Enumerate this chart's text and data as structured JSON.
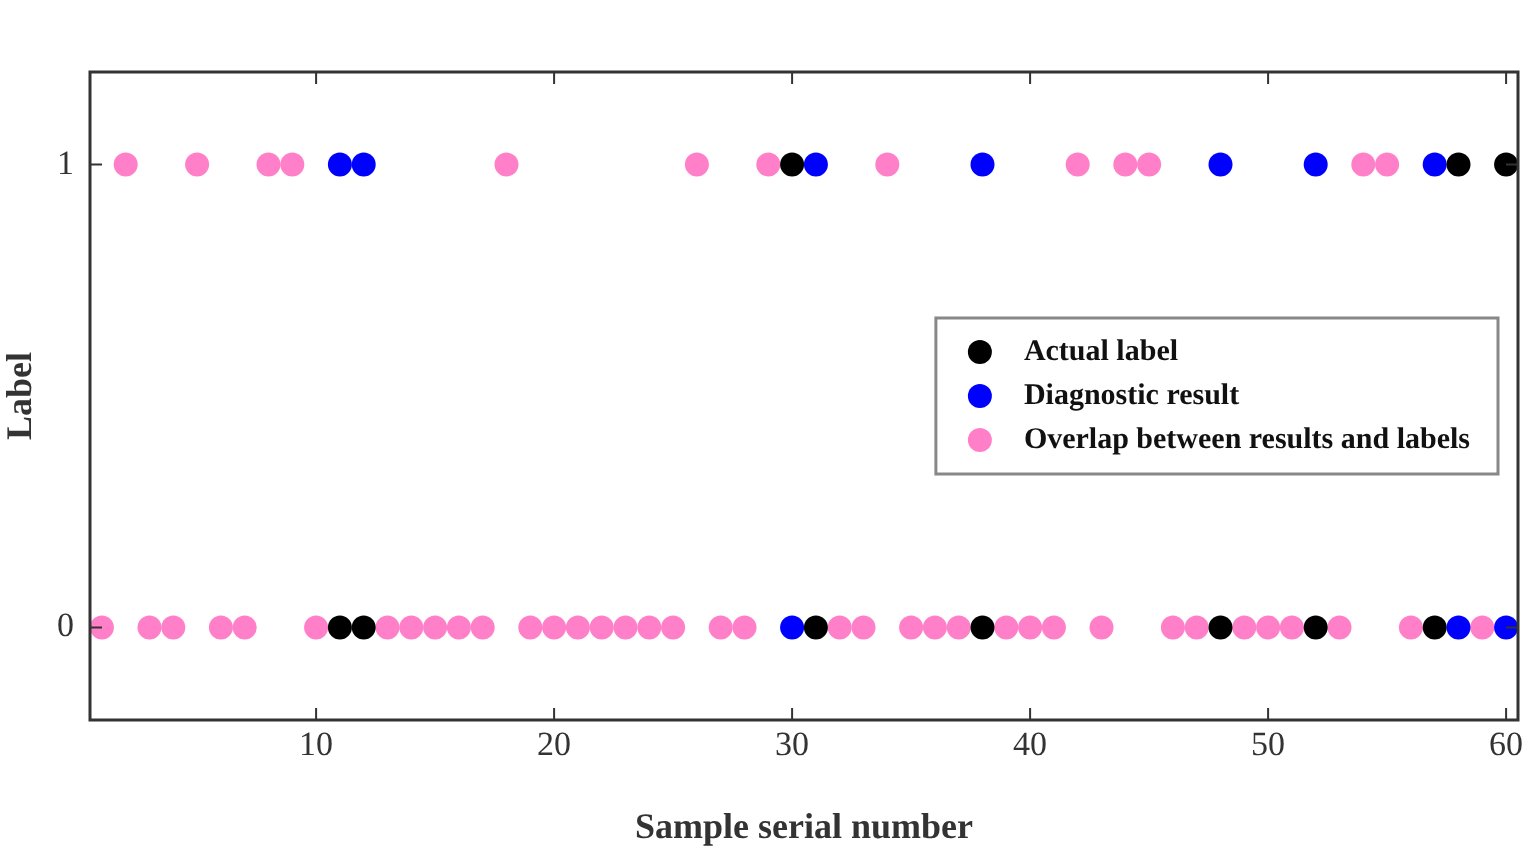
{
  "chart_data": {
    "type": "scatter",
    "xlabel": "Sample serial number",
    "ylabel": "Label",
    "xlim": [
      0.5,
      60.5
    ],
    "xticks": [
      10,
      20,
      30,
      40,
      50,
      60
    ],
    "ylim": [
      -0.2,
      1.2
    ],
    "yticks": [
      0,
      1
    ],
    "grid": false,
    "legend": "right",
    "marker": "circle",
    "series": [
      {
        "name": "Actual label",
        "color": "#000000",
        "x": [
          30,
          58,
          60,
          11,
          12,
          31,
          38,
          48,
          52,
          57
        ],
        "values": [
          1,
          1,
          1,
          0,
          0,
          0,
          0,
          0,
          0,
          0
        ]
      },
      {
        "name": "Diagnostic result",
        "color": "#0000ff",
        "x": [
          11,
          12,
          31,
          38,
          48,
          52,
          57,
          30,
          58,
          60
        ],
        "values": [
          1,
          1,
          1,
          1,
          1,
          1,
          1,
          0,
          0,
          0
        ]
      },
      {
        "name": "Overlap between results and labels",
        "color": "#ff80c8",
        "x": [
          2,
          5,
          8,
          9,
          18,
          26,
          29,
          34,
          42,
          44,
          45,
          54,
          55,
          1,
          3,
          4,
          6,
          7,
          10,
          13,
          14,
          15,
          16,
          17,
          19,
          20,
          21,
          22,
          23,
          24,
          25,
          27,
          28,
          32,
          33,
          35,
          36,
          37,
          39,
          40,
          41,
          43,
          46,
          47,
          49,
          50,
          51,
          53,
          56,
          59
        ],
        "values": [
          1,
          1,
          1,
          1,
          1,
          1,
          1,
          1,
          1,
          1,
          1,
          1,
          1,
          0,
          0,
          0,
          0,
          0,
          0,
          0,
          0,
          0,
          0,
          0,
          0,
          0,
          0,
          0,
          0,
          0,
          0,
          0,
          0,
          0,
          0,
          0,
          0,
          0,
          0,
          0,
          0,
          0,
          0,
          0,
          0,
          0,
          0,
          0,
          0,
          0
        ]
      }
    ]
  }
}
